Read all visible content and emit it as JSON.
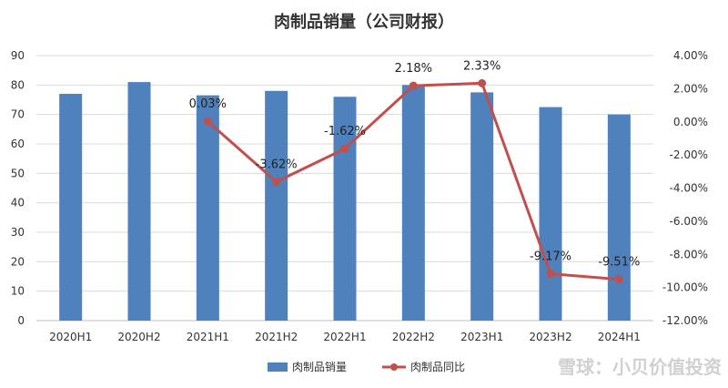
{
  "chart_data": {
    "type": "bar",
    "title": "肉制品销量（公司财报）",
    "categories": [
      "2020H1",
      "2020H2",
      "2021H1",
      "2021H2",
      "2022H1",
      "2022H2",
      "2023H1",
      "2023H2",
      "2024H1"
    ],
    "series": [
      {
        "name": "肉制品销量",
        "type": "bar",
        "axis": "left",
        "color": "#4f81bd",
        "values": [
          77,
          81,
          76.5,
          78,
          76,
          80,
          77.5,
          72.5,
          70
        ]
      },
      {
        "name": "肉制品同比",
        "type": "line",
        "axis": "right",
        "color": "#c0504d",
        "values": [
          null,
          null,
          0.03,
          -3.62,
          -1.62,
          2.18,
          2.33,
          -9.17,
          -9.51
        ],
        "labels": [
          "",
          "",
          "0.03%",
          "-3.62%",
          "-1.62%",
          "2.18%",
          "2.33%",
          "-9.17%",
          "-9.51%"
        ]
      }
    ],
    "y_left": {
      "min": 0,
      "max": 90,
      "ticks": [
        "0",
        "10",
        "20",
        "30",
        "40",
        "50",
        "60",
        "70",
        "80",
        "90"
      ]
    },
    "y_right": {
      "min": -12,
      "max": 4,
      "ticks": [
        "-12.00%",
        "-10.00%",
        "-8.00%",
        "-6.00%",
        "-4.00%",
        "-2.00%",
        "0.00%",
        "2.00%",
        "4.00%"
      ]
    },
    "grid": true,
    "legend_position": "bottom"
  },
  "watermark": "雪球：小贝价值投资"
}
